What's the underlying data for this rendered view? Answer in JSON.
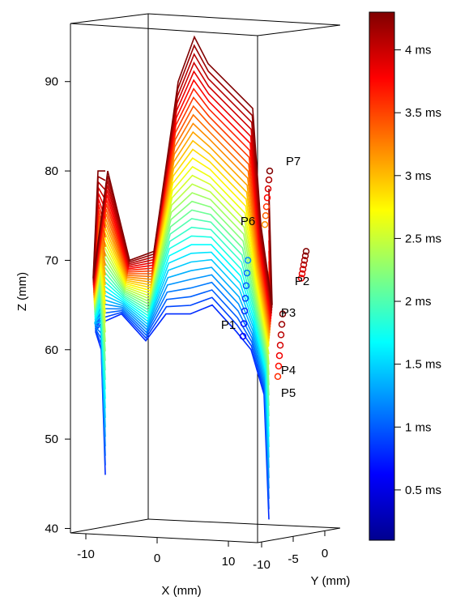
{
  "chart_data": {
    "type": "line",
    "projection": "3d",
    "xlabel": "X (mm)",
    "ylabel": "Y (mm)",
    "zlabel": "Z (mm)",
    "x_ticks": [
      "-10",
      "0",
      "10"
    ],
    "y_ticks": [
      "-10",
      "-5",
      "0"
    ],
    "z_ticks": [
      "40",
      "50",
      "60",
      "70",
      "80",
      "90"
    ],
    "zlim": [
      39.5,
      96.5
    ],
    "colorbar": {
      "range_ms": [
        0.1,
        4.3
      ],
      "ticks": [
        {
          "value": 0.5,
          "label": "0.5 ms"
        },
        {
          "value": 1,
          "label": "1 ms"
        },
        {
          "value": 1.5,
          "label": "1.5 ms"
        },
        {
          "value": 2,
          "label": "2 ms"
        },
        {
          "value": 2.5,
          "label": "2.5 ms"
        },
        {
          "value": 3,
          "label": "3 ms"
        },
        {
          "value": 3.5,
          "label": "3.5 ms"
        },
        {
          "value": 4,
          "label": "4 ms"
        }
      ],
      "colormap": [
        "#00008f",
        "#0000ff",
        "#0080ff",
        "#00ffff",
        "#80ff80",
        "#ffff00",
        "#ff8000",
        "#ff0000",
        "#800000"
      ]
    },
    "point_labels": [
      "P1",
      "P2",
      "P3",
      "P4",
      "P5",
      "P6",
      "P7"
    ],
    "series": [
      {
        "time_ms": 1.0,
        "z_left": 46,
        "z_center": 65,
        "z_right": 41
      },
      {
        "time_ms": 1.5,
        "z_left": 54,
        "z_center": 66,
        "z_right": 48
      },
      {
        "time_ms": 2.0,
        "z_left": 60,
        "z_center": 70,
        "z_right": 56
      },
      {
        "time_ms": 2.5,
        "z_left": 66,
        "z_center": 76,
        "z_right": 62
      },
      {
        "time_ms": 3.0,
        "z_left": 72,
        "z_center": 82,
        "z_right": 68
      },
      {
        "time_ms": 3.5,
        "z_left": 77,
        "z_center": 89,
        "z_right": 73
      },
      {
        "time_ms": 4.0,
        "z_left": 80,
        "z_center": 94,
        "z_right": 76
      },
      {
        "time_ms": 4.3,
        "z_left": 80,
        "z_center": 96,
        "z_right": 80
      }
    ]
  }
}
